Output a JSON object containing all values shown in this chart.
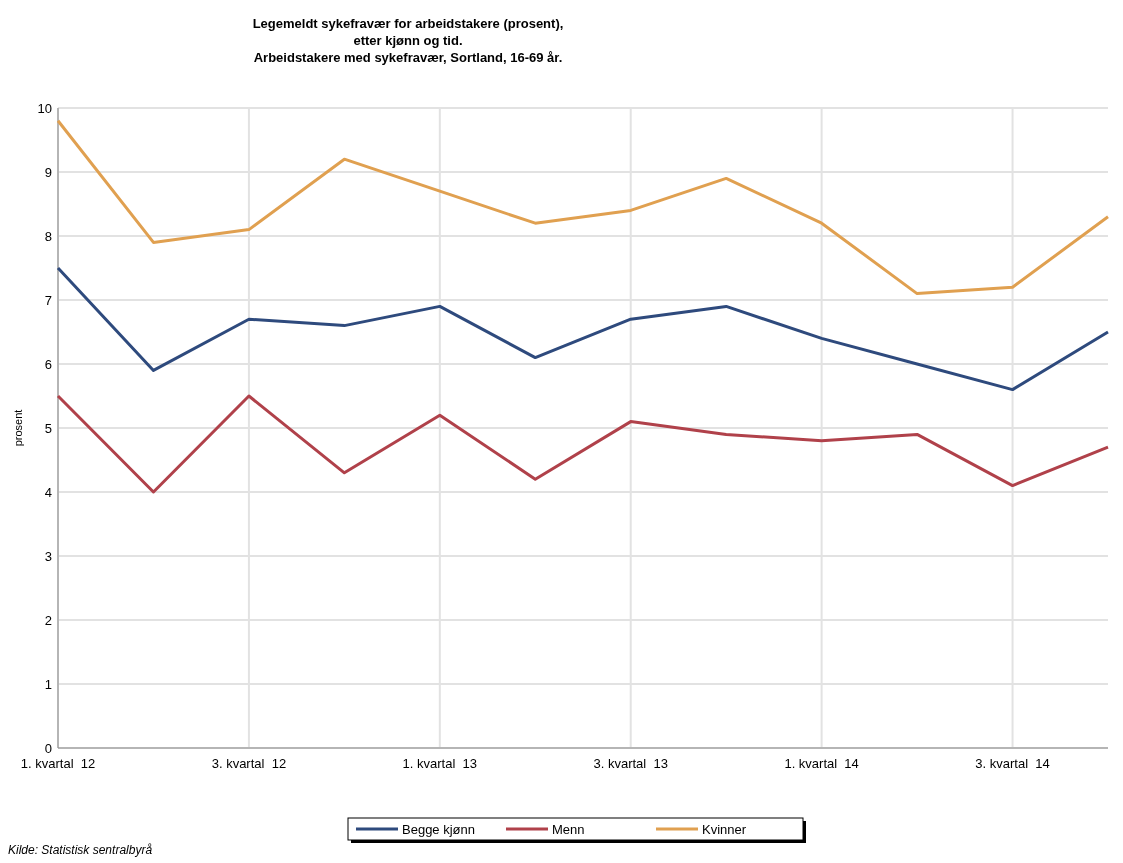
{
  "chart_data": {
    "type": "line",
    "title": "Legemeldt sykefravær for arbeidstakere (prosent),\netter kjønn og tid.\nArbeidstakere med sykefravær, Sortland, 16-69 år.",
    "ylabel": "prosent",
    "annotations": [
      "Kilde: Statistisk sentralbyrå"
    ],
    "categories": [
      "1. kvartal  12",
      null,
      "3. kvartal  12",
      null,
      "1. kvartal  13",
      null,
      "3. kvartal  13",
      null,
      "1. kvartal  14",
      null,
      "3. kvartal  14",
      null
    ],
    "series": [
      {
        "name": "Begge kjønn",
        "color": "#2e4a7d",
        "values": [
          7.5,
          5.9,
          6.7,
          6.6,
          6.9,
          6.1,
          6.7,
          6.9,
          6.4,
          6.0,
          5.6,
          6.5
        ]
      },
      {
        "name": "Menn",
        "color": "#b0414a",
        "values": [
          5.5,
          4.0,
          5.5,
          4.3,
          5.2,
          4.2,
          5.1,
          4.9,
          4.8,
          4.9,
          4.1,
          4.7
        ]
      },
      {
        "name": "Kvinner",
        "color": "#e0a050",
        "values": [
          9.8,
          7.9,
          8.1,
          9.2,
          8.7,
          8.2,
          8.4,
          8.9,
          8.2,
          7.1,
          7.2,
          8.3
        ]
      }
    ],
    "ylim": [
      0,
      10
    ],
    "yticks": [
      0,
      1,
      2,
      3,
      4,
      5,
      6,
      7,
      8,
      9,
      10
    ],
    "grid": true,
    "legend": "bottom",
    "marker": "none",
    "line_style": "solid"
  }
}
